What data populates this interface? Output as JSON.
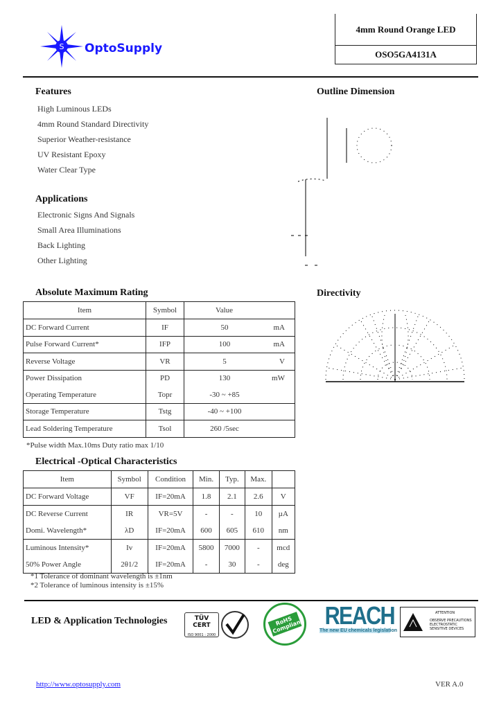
{
  "header": {
    "brand": "OptoSupply",
    "product_title": "4mm Round Orange LED",
    "part_number": "OSO5GA4131A"
  },
  "features": {
    "heading": "Features",
    "items": [
      "High Luminous LEDs",
      "4mm Round Standard Directivity",
      "Superior Weather-resistance",
      "UV Resistant Epoxy",
      "Water Clear Type"
    ]
  },
  "applications": {
    "heading": "Applications",
    "items": [
      "Electronic Signs And Signals",
      "Small Area Illuminations",
      "Back Lighting",
      "Other Lighting"
    ]
  },
  "outline": {
    "heading": "Outline Dimension"
  },
  "directivity": {
    "heading": "Directivity"
  },
  "abs_max": {
    "heading": "Absolute Maximum Rating",
    "columns": [
      "Item",
      "Symbol",
      "Value"
    ],
    "rows": [
      {
        "item": "DC Forward Current",
        "symbol": "IF",
        "value": "50",
        "unit": "mA"
      },
      {
        "item": "Pulse Forward Current*",
        "symbol": "IFP",
        "value": "100",
        "unit": "mA"
      },
      {
        "item": "Reverse Voltage",
        "symbol": "VR",
        "value": "5",
        "unit": "V"
      },
      {
        "item": "Power Dissipation",
        "symbol": "PD",
        "value": "130",
        "unit": "mW"
      },
      {
        "item": "Operating Temperature",
        "symbol": "Topr",
        "value": "-30 ~ +85",
        "unit": ""
      },
      {
        "item": "Storage Temperature",
        "symbol": "Tstg",
        "value": "-40 ~ +100",
        "unit": ""
      },
      {
        "item": "Lead Soldering Temperature",
        "symbol": "Tsol",
        "value": "260  /5sec",
        "unit": ""
      }
    ],
    "footnote": "*Pulse width Max.10ms   Duty ratio max 1/10"
  },
  "eo": {
    "heading": "Electrical -Optical Characteristics",
    "columns": [
      "Item",
      "Symbol",
      "Condition",
      "Min.",
      "Typ.",
      "Max.",
      ""
    ],
    "rows": [
      [
        "DC Forward Voltage",
        "VF",
        "IF=20mA",
        "1.8",
        "2.1",
        "2.6",
        "V"
      ],
      [
        "DC Reverse Current",
        "IR",
        "VR=5V",
        "-",
        "-",
        "10",
        "µA"
      ],
      [
        "Domi. Wavelength*",
        "λD",
        "IF=20mA",
        "600",
        "605",
        "610",
        "nm"
      ],
      [
        "Luminous Intensity*",
        "Iv",
        "IF=20mA",
        "5800",
        "7000",
        "-",
        "mcd"
      ],
      [
        "50% Power Angle",
        "2θ1/2",
        "IF=20mA",
        "-",
        "30",
        "-",
        "deg"
      ]
    ],
    "notes": [
      "*1 Tolerance of dominant wavelength is ±1nm",
      "*2 Tolerance of luminous intensity is ±15%"
    ]
  },
  "footer": {
    "tagline": "LED & Application Technologies",
    "url": "http://www.optosupply.com",
    "version": "VER A.0",
    "logos": {
      "tuv": "TÜV CERT",
      "tuv_sub": "ISO 9001 : 2000",
      "rohs": "RoHS Compliant",
      "reach": "REACH",
      "reach_sub": "The new EU chemicals legislation",
      "esd_title": "ATTENTION",
      "esd_text": "OBSERVE PRECAUTIONS ELECTROSTATIC SENSITIVE DEVICES"
    }
  },
  "colors": {
    "brand": "#1a1aff",
    "reach": "#1f6f8b",
    "rohs": "#2a9d3a"
  }
}
